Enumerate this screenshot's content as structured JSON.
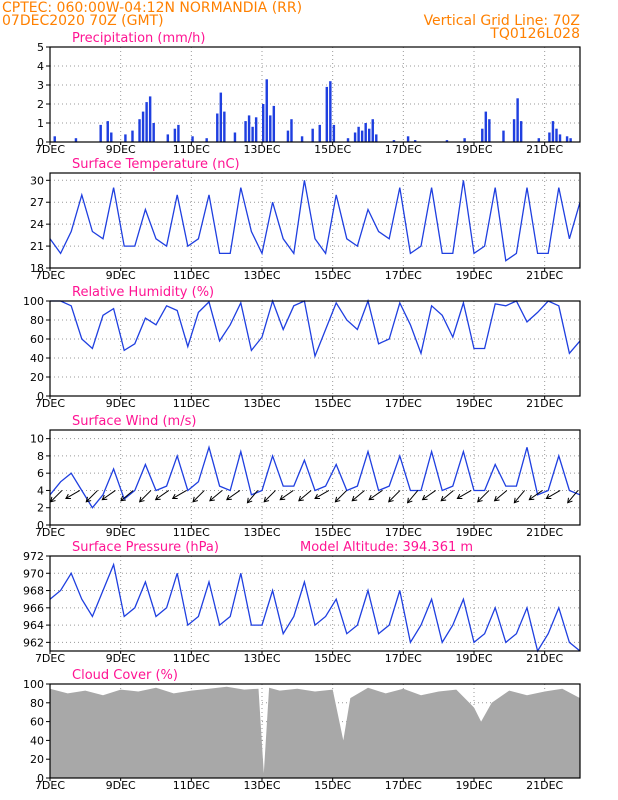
{
  "header": {
    "line1": "CPTEC:   060:00W-04:12N   NORMANDIA (RR)",
    "line2": "07DEC2020 70Z (GMT)",
    "right1": "Vertical Grid Line: 70Z",
    "right2": "TQ0126L028"
  },
  "colors": {
    "header": "#ff8000",
    "title": "#ff1493",
    "line": "#1f3fe0",
    "bar": "#1f3fe0",
    "cloud": "#a8a8a8"
  },
  "x_axis": {
    "labels": [
      "7DEC",
      "9DEC",
      "11DEC",
      "13DEC",
      "15DEC",
      "17DEC",
      "19DEC",
      "21DEC"
    ],
    "label_days": [
      0,
      2,
      4,
      6,
      8,
      10,
      12,
      14
    ],
    "range_days": [
      0,
      15
    ]
  },
  "chart_data": [
    {
      "type": "bar",
      "title": "Precipitation (mm/h)",
      "ylim": [
        0,
        5
      ],
      "yticks": [
        0,
        1,
        2,
        3,
        4,
        5
      ],
      "step_days": 0.125,
      "events": [
        {
          "x": 0.1,
          "y": 0.3
        },
        {
          "x": 0.7,
          "y": 0.2
        },
        {
          "x": 1.4,
          "y": 0.9
        },
        {
          "x": 1.6,
          "y": 1.1
        },
        {
          "x": 1.7,
          "y": 0.5
        },
        {
          "x": 2.1,
          "y": 0.4
        },
        {
          "x": 2.3,
          "y": 0.6
        },
        {
          "x": 2.5,
          "y": 1.2
        },
        {
          "x": 2.6,
          "y": 1.6
        },
        {
          "x": 2.7,
          "y": 2.1
        },
        {
          "x": 2.8,
          "y": 2.4
        },
        {
          "x": 2.9,
          "y": 1.0
        },
        {
          "x": 3.3,
          "y": 0.4
        },
        {
          "x": 3.5,
          "y": 0.7
        },
        {
          "x": 3.6,
          "y": 0.9
        },
        {
          "x": 4.0,
          "y": 0.3
        },
        {
          "x": 4.4,
          "y": 0.2
        },
        {
          "x": 4.7,
          "y": 1.5
        },
        {
          "x": 4.8,
          "y": 2.6
        },
        {
          "x": 4.9,
          "y": 1.6
        },
        {
          "x": 5.2,
          "y": 0.5
        },
        {
          "x": 5.5,
          "y": 1.1
        },
        {
          "x": 5.6,
          "y": 1.4
        },
        {
          "x": 5.7,
          "y": 0.8
        },
        {
          "x": 5.8,
          "y": 1.3
        },
        {
          "x": 6.0,
          "y": 2.0
        },
        {
          "x": 6.1,
          "y": 3.3
        },
        {
          "x": 6.2,
          "y": 1.4
        },
        {
          "x": 6.3,
          "y": 1.9
        },
        {
          "x": 6.7,
          "y": 0.6
        },
        {
          "x": 6.8,
          "y": 1.2
        },
        {
          "x": 7.1,
          "y": 0.3
        },
        {
          "x": 7.4,
          "y": 0.7
        },
        {
          "x": 7.6,
          "y": 0.9
        },
        {
          "x": 7.8,
          "y": 2.9
        },
        {
          "x": 7.9,
          "y": 3.2
        },
        {
          "x": 8.0,
          "y": 0.9
        },
        {
          "x": 8.4,
          "y": 0.2
        },
        {
          "x": 8.6,
          "y": 0.5
        },
        {
          "x": 8.7,
          "y": 0.8
        },
        {
          "x": 8.8,
          "y": 0.6
        },
        {
          "x": 8.9,
          "y": 1.0
        },
        {
          "x": 9.0,
          "y": 0.7
        },
        {
          "x": 9.1,
          "y": 1.2
        },
        {
          "x": 9.2,
          "y": 0.4
        },
        {
          "x": 9.7,
          "y": 0.1
        },
        {
          "x": 10.1,
          "y": 0.3
        },
        {
          "x": 10.3,
          "y": 0.1
        },
        {
          "x": 11.2,
          "y": 0.1
        },
        {
          "x": 11.7,
          "y": 0.2
        },
        {
          "x": 12.2,
          "y": 0.7
        },
        {
          "x": 12.3,
          "y": 1.6
        },
        {
          "x": 12.4,
          "y": 1.2
        },
        {
          "x": 12.8,
          "y": 0.6
        },
        {
          "x": 13.1,
          "y": 1.2
        },
        {
          "x": 13.2,
          "y": 2.3
        },
        {
          "x": 13.3,
          "y": 1.1
        },
        {
          "x": 13.8,
          "y": 0.2
        },
        {
          "x": 14.1,
          "y": 0.5
        },
        {
          "x": 14.2,
          "y": 1.1
        },
        {
          "x": 14.3,
          "y": 0.7
        },
        {
          "x": 14.4,
          "y": 0.4
        },
        {
          "x": 14.6,
          "y": 0.3
        },
        {
          "x": 14.7,
          "y": 0.2
        }
      ]
    },
    {
      "type": "line",
      "title": "Surface Temperature (nC)",
      "ylim": [
        18,
        31
      ],
      "yticks": [
        18,
        21,
        24,
        27,
        30
      ],
      "x": [
        0,
        0.3,
        0.6,
        0.9,
        1.2,
        1.5,
        1.8,
        2.1,
        2.4,
        2.7,
        3.0,
        3.3,
        3.6,
        3.9,
        4.2,
        4.5,
        4.8,
        5.1,
        5.4,
        5.7,
        6.0,
        6.3,
        6.6,
        6.9,
        7.2,
        7.5,
        7.8,
        8.1,
        8.4,
        8.7,
        9.0,
        9.3,
        9.6,
        9.9,
        10.2,
        10.5,
        10.8,
        11.1,
        11.4,
        11.7,
        12.0,
        12.3,
        12.6,
        12.9,
        13.2,
        13.5,
        13.8,
        14.1,
        14.4,
        14.7,
        15.0
      ],
      "y": [
        22,
        20,
        23,
        28,
        23,
        22,
        29,
        21,
        21,
        26,
        22,
        21,
        28,
        21,
        22,
        28,
        20,
        20,
        29,
        23,
        20,
        27,
        22,
        20,
        30,
        22,
        20,
        28,
        22,
        21,
        26,
        23,
        22,
        29,
        20,
        21,
        29,
        20,
        20,
        30,
        20,
        21,
        29,
        19,
        20,
        29,
        20,
        20,
        29,
        22,
        27
      ]
    },
    {
      "type": "line",
      "title": "Relative Humidity (%)",
      "ylim": [
        0,
        100
      ],
      "yticks": [
        0,
        20,
        40,
        60,
        80,
        100
      ],
      "x": [
        0,
        0.3,
        0.6,
        0.9,
        1.2,
        1.5,
        1.8,
        2.1,
        2.4,
        2.7,
        3.0,
        3.3,
        3.6,
        3.9,
        4.2,
        4.5,
        4.8,
        5.1,
        5.4,
        5.7,
        6.0,
        6.3,
        6.6,
        6.9,
        7.2,
        7.5,
        7.8,
        8.1,
        8.4,
        8.7,
        9.0,
        9.3,
        9.6,
        9.9,
        10.2,
        10.5,
        10.8,
        11.1,
        11.4,
        11.7,
        12.0,
        12.3,
        12.6,
        12.9,
        13.2,
        13.5,
        13.8,
        14.1,
        14.4,
        14.7,
        15.0
      ],
      "y": [
        100,
        100,
        95,
        60,
        50,
        85,
        92,
        48,
        55,
        82,
        75,
        95,
        90,
        52,
        88,
        99,
        58,
        75,
        98,
        48,
        62,
        100,
        70,
        95,
        100,
        42,
        70,
        98,
        80,
        70,
        100,
        55,
        60,
        98,
        75,
        45,
        95,
        85,
        62,
        98,
        50,
        50,
        97,
        95,
        100,
        78,
        88,
        100,
        95,
        45,
        58
      ]
    },
    {
      "type": "line",
      "title": "Surface Wind (m/s)",
      "ylim": [
        0,
        11
      ],
      "yticks": [
        0,
        2,
        4,
        6,
        8,
        10
      ],
      "x": [
        0,
        0.3,
        0.6,
        0.9,
        1.2,
        1.5,
        1.8,
        2.1,
        2.4,
        2.7,
        3.0,
        3.3,
        3.6,
        3.9,
        4.2,
        4.5,
        4.8,
        5.1,
        5.4,
        5.7,
        6.0,
        6.3,
        6.6,
        6.9,
        7.2,
        7.5,
        7.8,
        8.1,
        8.4,
        8.7,
        9.0,
        9.3,
        9.6,
        9.9,
        10.2,
        10.5,
        10.8,
        11.1,
        11.4,
        11.7,
        12.0,
        12.3,
        12.6,
        12.9,
        13.2,
        13.5,
        13.8,
        14.1,
        14.4,
        14.7,
        15.0
      ],
      "y": [
        3.5,
        5.0,
        6.0,
        4.0,
        2.0,
        3.5,
        6.5,
        3.0,
        4.0,
        7.0,
        4.0,
        4.5,
        8.0,
        4.0,
        5.0,
        9.0,
        4.5,
        4.0,
        8.5,
        3.5,
        4.0,
        8.0,
        4.5,
        4.5,
        7.5,
        4.0,
        4.5,
        7.0,
        4.0,
        4.5,
        8.5,
        4.0,
        4.5,
        8.0,
        4.0,
        4.0,
        8.5,
        4.0,
        4.5,
        8.5,
        4.0,
        4.0,
        7.0,
        4.5,
        4.5,
        9.0,
        3.5,
        4.0,
        8.0,
        4.0,
        3.5
      ],
      "arrow_angles_deg": [
        225,
        210,
        225,
        215,
        220,
        225,
        215,
        210,
        225,
        220,
        215,
        230,
        225,
        215,
        220,
        210,
        225,
        220,
        215,
        225,
        230,
        215,
        220,
        210,
        225,
        220,
        230,
        215,
        210,
        230
      ]
    },
    {
      "type": "line",
      "title": "Surface Pressure (hPa)",
      "annotation": "Model Altitude: 394.361  m",
      "ylim": [
        961,
        972
      ],
      "yticks": [
        962,
        964,
        966,
        968,
        970,
        972
      ],
      "x": [
        0,
        0.3,
        0.6,
        0.9,
        1.2,
        1.5,
        1.8,
        2.1,
        2.4,
        2.7,
        3.0,
        3.3,
        3.6,
        3.9,
        4.2,
        4.5,
        4.8,
        5.1,
        5.4,
        5.7,
        6.0,
        6.3,
        6.6,
        6.9,
        7.2,
        7.5,
        7.8,
        8.1,
        8.4,
        8.7,
        9.0,
        9.3,
        9.6,
        9.9,
        10.2,
        10.5,
        10.8,
        11.1,
        11.4,
        11.7,
        12.0,
        12.3,
        12.6,
        12.9,
        13.2,
        13.5,
        13.8,
        14.1,
        14.4,
        14.7,
        15.0
      ],
      "y": [
        967,
        968,
        970,
        967,
        965,
        968,
        971,
        965,
        966,
        969,
        965,
        966,
        970,
        964,
        965,
        969,
        964,
        965,
        970,
        964,
        964,
        968,
        963,
        965,
        969,
        964,
        965,
        967,
        963,
        964,
        968,
        963,
        964,
        968,
        962,
        964,
        967,
        962,
        964,
        967,
        962,
        963,
        966,
        962,
        963,
        966,
        961,
        963,
        966,
        962,
        961
      ]
    },
    {
      "type": "area",
      "title": "Cloud Cover (%)",
      "ylim": [
        0,
        100
      ],
      "yticks": [
        0,
        20,
        40,
        60,
        80,
        100
      ],
      "x": [
        0,
        0.5,
        1,
        1.5,
        2,
        2.5,
        3,
        3.5,
        4,
        4.5,
        5,
        5.5,
        5.9,
        6.05,
        6.2,
        6.5,
        7,
        7.5,
        8,
        8.3,
        8.5,
        9,
        9.5,
        10,
        10.5,
        11,
        11.5,
        12,
        12.2,
        12.5,
        13,
        13.5,
        14,
        14.5,
        15
      ],
      "y": [
        95,
        90,
        93,
        88,
        94,
        92,
        96,
        90,
        93,
        95,
        97,
        94,
        95,
        5,
        96,
        93,
        95,
        92,
        94,
        40,
        85,
        96,
        90,
        95,
        88,
        92,
        94,
        75,
        60,
        80,
        93,
        88,
        92,
        95,
        85
      ]
    }
  ]
}
